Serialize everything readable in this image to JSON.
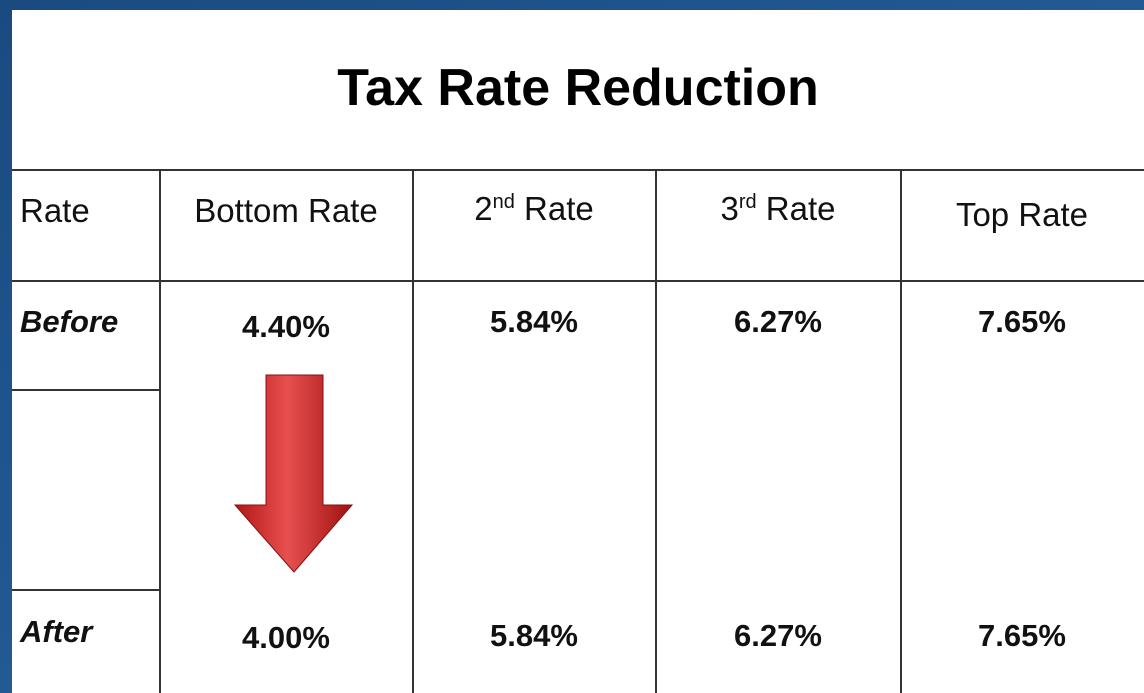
{
  "title": "Tax Rate Reduction",
  "table": {
    "header": [
      {
        "text": "Rate"
      },
      {
        "text": "Bottom Rate"
      },
      {
        "text": "2",
        "sup": "nd",
        "tail": " Rate"
      },
      {
        "text": "3",
        "sup": "rd",
        "tail": " Rate"
      },
      {
        "text": "Top Rate"
      }
    ],
    "rows": [
      [
        "Before",
        "4.40%",
        "5.84%",
        "6.27%",
        "7.65%"
      ],
      [
        "After",
        "4.00%",
        "5.84%",
        "6.27%",
        "7.65%"
      ]
    ]
  }
}
